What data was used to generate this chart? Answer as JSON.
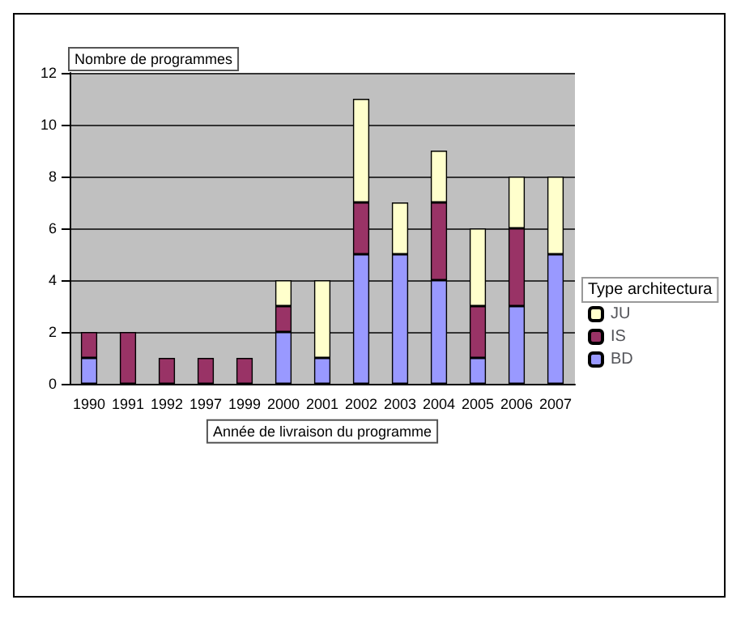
{
  "chart_data": {
    "type": "bar",
    "stacked": true,
    "xlabel": "Année de livraison du programme",
    "ylabel": "Nombre de programmes",
    "legend_title": "Type architectura",
    "categories": [
      "1990",
      "1991",
      "1992",
      "1997",
      "1999",
      "2000",
      "2001",
      "2002",
      "2003",
      "2004",
      "2005",
      "2006",
      "2007"
    ],
    "series": [
      {
        "name": "BD",
        "color": "#9999ff",
        "values": [
          1,
          0,
          0,
          0,
          0,
          2,
          1,
          5,
          5,
          4,
          1,
          3,
          5
        ]
      },
      {
        "name": "IS",
        "color": "#993366",
        "values": [
          1,
          2,
          1,
          1,
          1,
          1,
          0,
          2,
          0,
          3,
          2,
          3,
          0
        ]
      },
      {
        "name": "JU",
        "color": "#ffffcc",
        "values": [
          0,
          0,
          0,
          0,
          0,
          1,
          3,
          4,
          2,
          2,
          3,
          2,
          3
        ]
      }
    ],
    "ylim": [
      0,
      12
    ],
    "yticks": [
      0,
      2,
      4,
      6,
      8,
      10,
      12
    ],
    "grid": "y",
    "legend": "right"
  }
}
